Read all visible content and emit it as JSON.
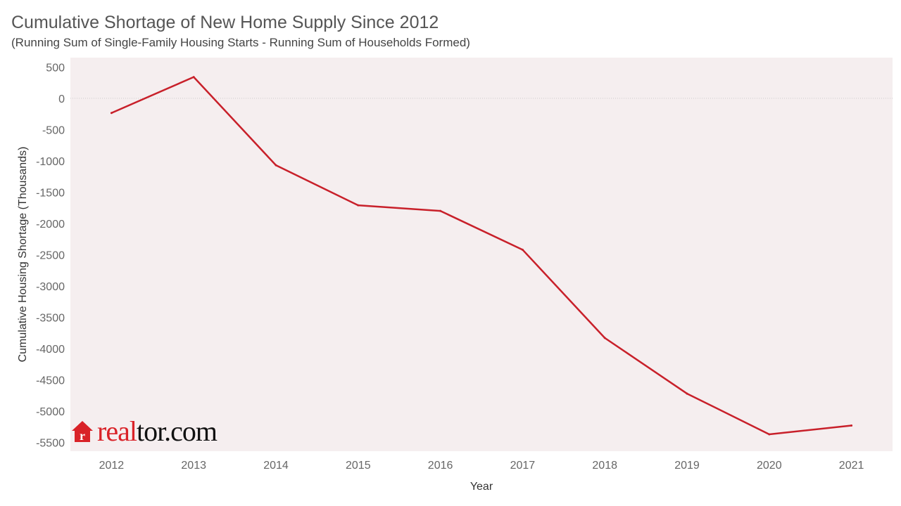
{
  "title": "Cumulative Shortage of New Home Supply Since 2012",
  "subtitle": "(Running Sum of Single-Family Housing Starts - Running Sum of Households Formed)",
  "logo": {
    "part1": "real",
    "part2": "tor.com"
  },
  "colors": {
    "line": "#c8202a",
    "plot_bg": "#f5eeef",
    "zero_line": "#cccccc"
  },
  "chart_data": {
    "type": "line",
    "xlabel": "Year",
    "ylabel": "Cumulative Housing Shortage (Thousands)",
    "categories": [
      "2012",
      "2013",
      "2014",
      "2015",
      "2016",
      "2017",
      "2018",
      "2019",
      "2020",
      "2021"
    ],
    "values": [
      -235,
      340,
      -1070,
      -1710,
      -1800,
      -2420,
      -3830,
      -4720,
      -5370,
      -5230
    ],
    "yticks": [
      500,
      0,
      -500,
      -1000,
      -1500,
      -2000,
      -2500,
      -3000,
      -3500,
      -4000,
      -4500,
      -5000,
      -5500
    ],
    "ylim": [
      -5640,
      650
    ],
    "grid": false
  }
}
